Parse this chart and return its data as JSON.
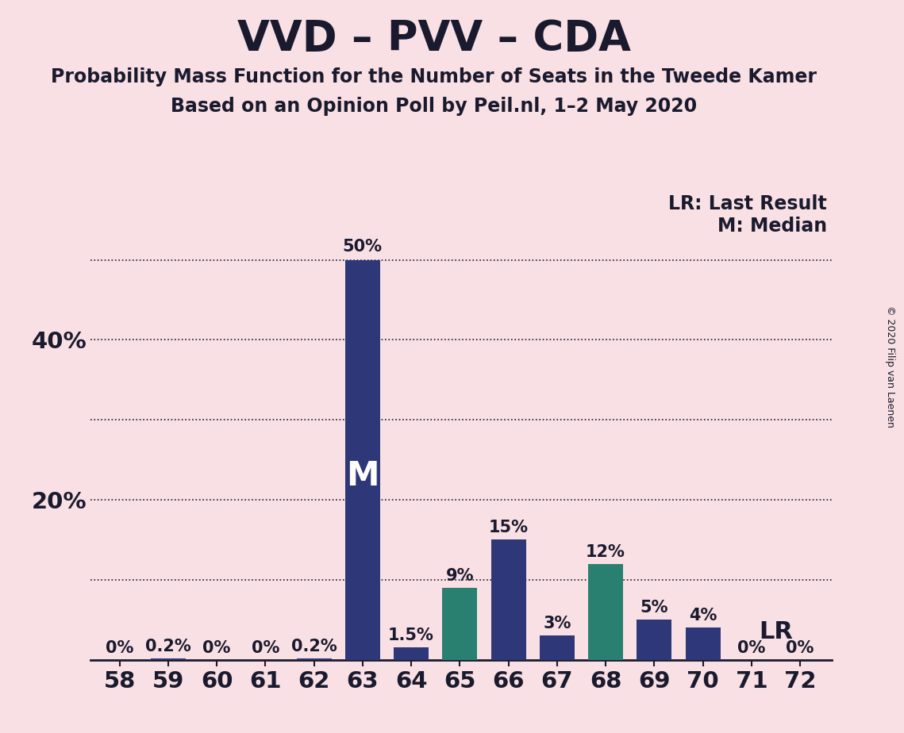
{
  "title": "VVD – PVV – CDA",
  "subtitle1": "Probability Mass Function for the Number of Seats in the Tweede Kamer",
  "subtitle2": "Based on an Opinion Poll by Peil.nl, 1–2 May 2020",
  "copyright": "© 2020 Filip van Laenen",
  "categories": [
    58,
    59,
    60,
    61,
    62,
    63,
    64,
    65,
    66,
    67,
    68,
    69,
    70,
    71,
    72
  ],
  "values": [
    0,
    0.2,
    0,
    0,
    0.2,
    50,
    1.5,
    9,
    15,
    3,
    12,
    5,
    4,
    0,
    0
  ],
  "bar_colors": [
    "#2e3878",
    "#2e3878",
    "#2e3878",
    "#2e3878",
    "#2e3878",
    "#2e3878",
    "#2e3878",
    "#2a8070",
    "#2e3878",
    "#2e3878",
    "#2a8070",
    "#2e3878",
    "#2e3878",
    "#2e3878",
    "#2e3878"
  ],
  "median_bar": 63,
  "lr_bar": 69,
  "background_color": "#f9e0e4",
  "axis_text_color": "#1a1a2e",
  "ylim": [
    0,
    55
  ],
  "lr_label": "LR",
  "legend_lr": "LR: Last Result",
  "legend_m": "M: Median",
  "title_fontsize": 38,
  "subtitle_fontsize": 17,
  "bar_label_fontsize": 15,
  "tick_label_fontsize": 21,
  "legend_fontsize": 17,
  "dotted_line_color": "#1a1a2e"
}
